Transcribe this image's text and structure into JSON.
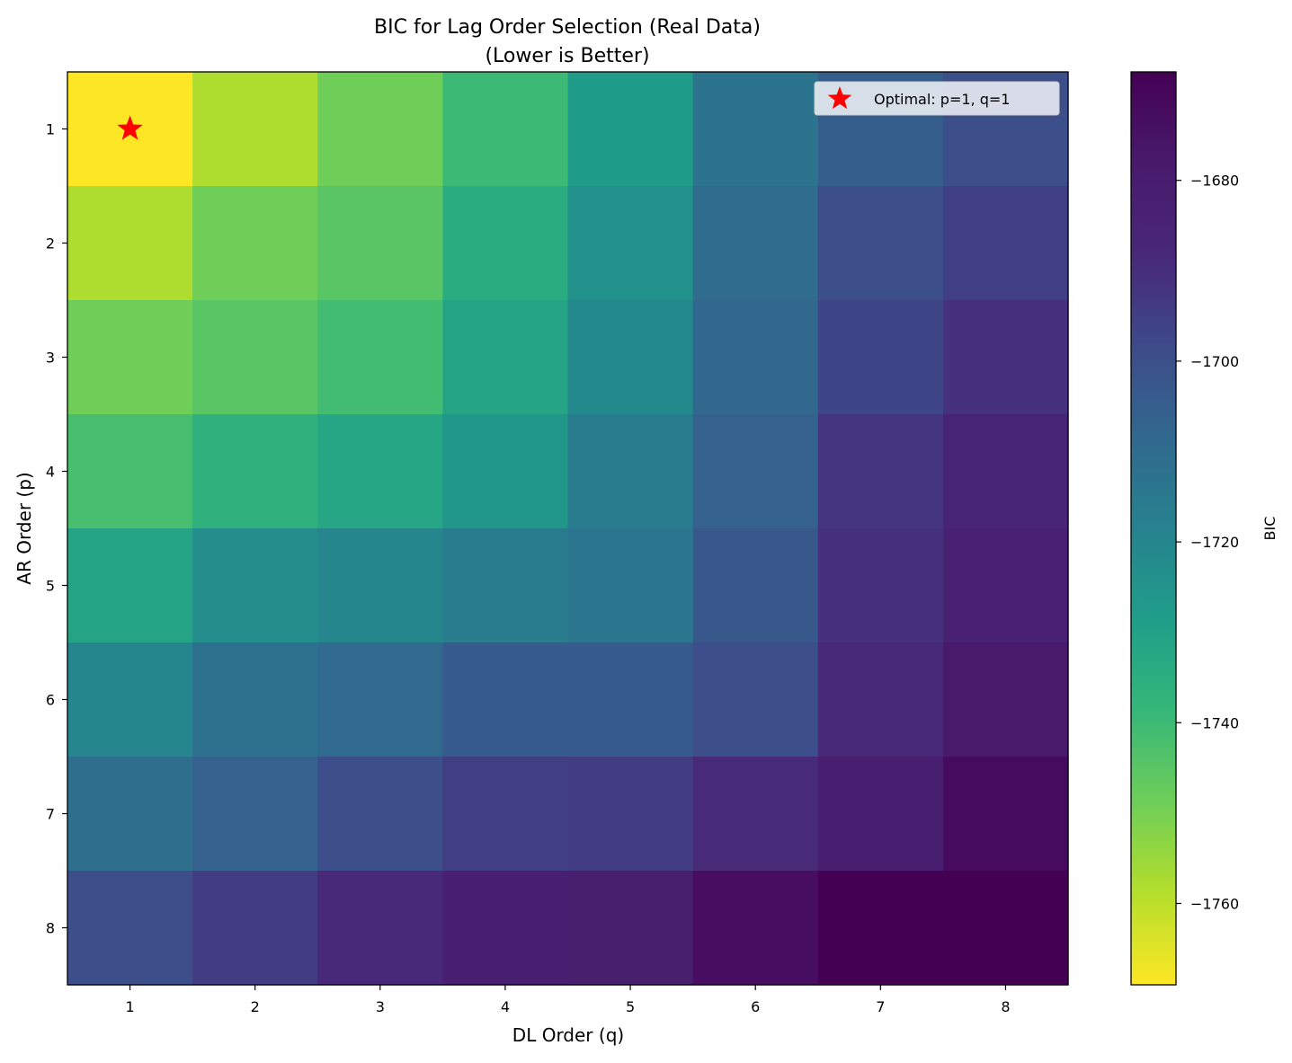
{
  "chart_data": {
    "type": "heatmap",
    "title": "BIC for Lag Order Selection (Real Data)",
    "subtitle": "(Lower is Better)",
    "xlabel": "DL Order (q)",
    "ylabel": "AR Order (p)",
    "x_categories": [
      "1",
      "2",
      "3",
      "4",
      "5",
      "6",
      "7",
      "8"
    ],
    "y_categories": [
      "1",
      "2",
      "3",
      "4",
      "5",
      "6",
      "7",
      "8"
    ],
    "values": [
      [
        -1769,
        -1758,
        -1749,
        -1740,
        -1728,
        -1713,
        -1705,
        -1700
      ],
      [
        -1758,
        -1749,
        -1745,
        -1734,
        -1724,
        -1710,
        -1700,
        -1695
      ],
      [
        -1749,
        -1745,
        -1741,
        -1731,
        -1721,
        -1708,
        -1697,
        -1691
      ],
      [
        -1742,
        -1736,
        -1732,
        -1726,
        -1716,
        -1706,
        -1692,
        -1685
      ],
      [
        -1731,
        -1723,
        -1720,
        -1716,
        -1714,
        -1703,
        -1691,
        -1683
      ],
      [
        -1720,
        -1712,
        -1709,
        -1704,
        -1704,
        -1700,
        -1688,
        -1678
      ],
      [
        -1711,
        -1706,
        -1700,
        -1695,
        -1694,
        -1689,
        -1682,
        -1672
      ],
      [
        -1700,
        -1694,
        -1688,
        -1682,
        -1681,
        -1673,
        -1668,
        -1668
      ]
    ],
    "colorbar": {
      "label": "BIC",
      "vmin": -1769,
      "vmax": -1668,
      "ticks": [
        "−1680",
        "−1700",
        "−1720",
        "−1740",
        "−1760"
      ],
      "tick_values": [
        -1680,
        -1700,
        -1720,
        -1740,
        -1760
      ],
      "colormap": "viridis (reversed: low = yellow, high = purple)"
    },
    "marker": {
      "shape": "star",
      "color": "#ff0000",
      "x": "1",
      "y": "1"
    },
    "legend": {
      "label": "Optimal: p=1, q=1",
      "placement": "top-right"
    },
    "y_axis_inverted": true
  }
}
